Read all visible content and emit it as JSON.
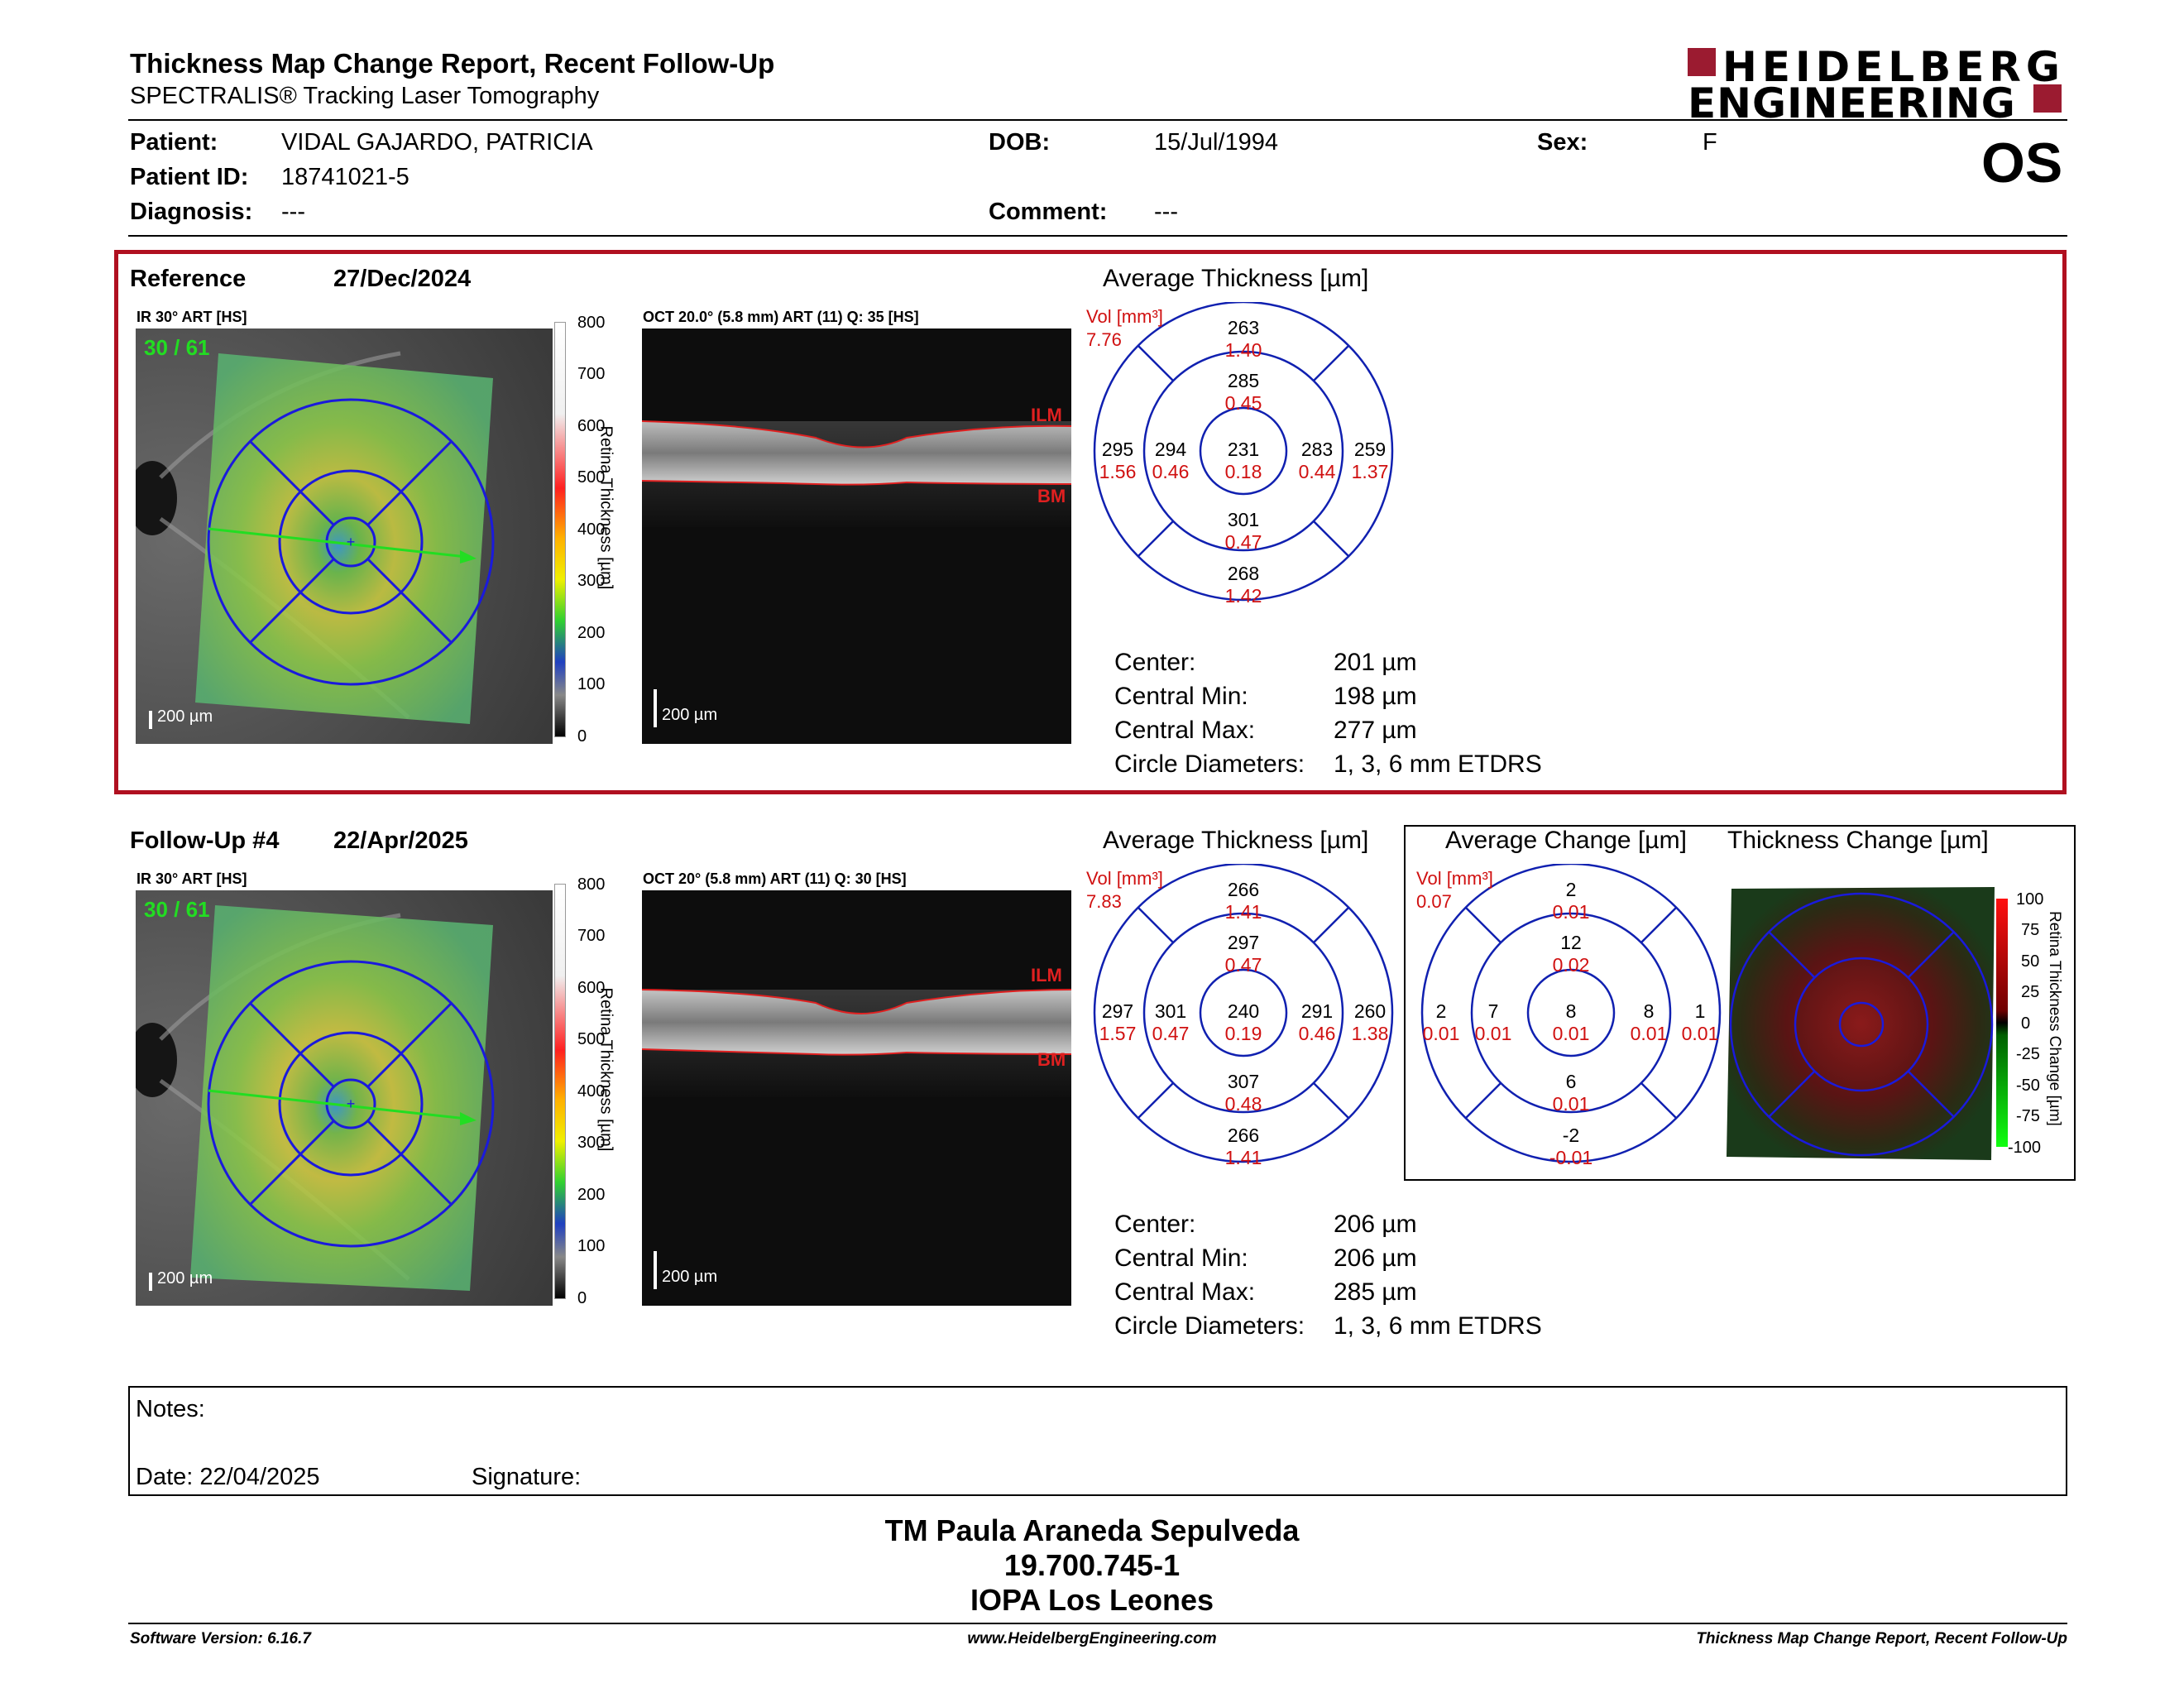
{
  "header": {
    "title": "Thickness Map Change Report, Recent Follow-Up",
    "subtitle": "SPECTRALIS® Tracking Laser Tomography",
    "logo_line1": "HEIDELBERG",
    "logo_line2": "ENGINEERING",
    "eye": "OS"
  },
  "patient": {
    "patient_label": "Patient:",
    "patient_value": "VIDAL GAJARDO, PATRICIA",
    "id_label": "Patient ID:",
    "id_value": "18741021-5",
    "diag_label": "Diagnosis:",
    "diag_value": "---",
    "dob_label": "DOB:",
    "dob_value": "15/Jul/1994",
    "comment_label": "Comment:",
    "comment_value": "---",
    "sex_label": "Sex:",
    "sex_value": "F"
  },
  "reference": {
    "label": "Reference",
    "date": "27/Dec/2024",
    "ir_caption": "IR 30° ART [HS]",
    "ir_counter": "30 / 61",
    "oct_caption": "OCT 20.0° (5.8 mm) ART (11) Q: 35 [HS]",
    "scale_label": "200 µm",
    "ilm": "ILM",
    "bm": "BM",
    "avg_title": "Average Thickness [µm]",
    "vol_label": "Vol [mm³]",
    "vol_total": "7.76",
    "etdrs": {
      "center": [
        "231",
        "0.18"
      ],
      "inner_sup": [
        "285",
        "0.45"
      ],
      "inner_inf": [
        "301",
        "0.47"
      ],
      "inner_temp": [
        "294",
        "0.46"
      ],
      "inner_nas": [
        "283",
        "0.44"
      ],
      "outer_sup": [
        "263",
        "1.40"
      ],
      "outer_inf": [
        "268",
        "1.42"
      ],
      "outer_temp": [
        "295",
        "1.56"
      ],
      "outer_nas": [
        "259",
        "1.37"
      ]
    },
    "stats": [
      {
        "label": "Center:",
        "value": "201 µm"
      },
      {
        "label": "Central Min:",
        "value": "198 µm"
      },
      {
        "label": "Central Max:",
        "value": "277 µm"
      },
      {
        "label": "Circle Diameters:",
        "value": "1, 3, 6 mm ETDRS"
      }
    ]
  },
  "followup": {
    "label": "Follow-Up #4",
    "date": "22/Apr/2025",
    "ir_caption": "IR 30° ART [HS]",
    "ir_counter": "30 / 61",
    "oct_caption": "OCT 20° (5.8 mm) ART (11) Q: 30 [HS]",
    "scale_label": "200 µm",
    "ilm": "ILM",
    "bm": "BM",
    "avg_title": "Average Thickness [µm]",
    "vol_label": "Vol [mm³]",
    "vol_total": "7.83",
    "etdrs": {
      "center": [
        "240",
        "0.19"
      ],
      "inner_sup": [
        "297",
        "0.47"
      ],
      "inner_inf": [
        "307",
        "0.48"
      ],
      "inner_temp": [
        "301",
        "0.47"
      ],
      "inner_nas": [
        "291",
        "0.46"
      ],
      "outer_sup": [
        "266",
        "1.41"
      ],
      "outer_inf": [
        "266",
        "1.41"
      ],
      "outer_temp": [
        "297",
        "1.57"
      ],
      "outer_nas": [
        "260",
        "1.38"
      ]
    },
    "stats": [
      {
        "label": "Center:",
        "value": "206 µm"
      },
      {
        "label": "Central Min:",
        "value": "206 µm"
      },
      {
        "label": "Central Max:",
        "value": "285 µm"
      },
      {
        "label": "Circle Diameters:",
        "value": "1, 3, 6 mm ETDRS"
      }
    ]
  },
  "change": {
    "avg_title": "Average Change [µm]",
    "map_title": "Thickness Change [µm]",
    "vol_label": "Vol [mm³]",
    "vol_total": "0.07",
    "etdrs": {
      "center": [
        "8",
        "0.01"
      ],
      "inner_sup": [
        "12",
        "0.02"
      ],
      "inner_inf": [
        "6",
        "0.01"
      ],
      "inner_temp": [
        "7",
        "0.01"
      ],
      "inner_nas": [
        "8",
        "0.01"
      ],
      "outer_sup": [
        "2",
        "0.01"
      ],
      "outer_inf": [
        "-2",
        "-0.01"
      ],
      "outer_temp": [
        "2",
        "0.01"
      ],
      "outer_nas": [
        "1",
        "0.01"
      ]
    },
    "colorbar_ticks": [
      "100",
      "75",
      "50",
      "25",
      "0",
      "-25",
      "-50",
      "-75",
      "-100"
    ],
    "colorbar_title": "Retina Thickness Change [µm]"
  },
  "colorbar": {
    "ticks": [
      "800",
      "700",
      "600",
      "500",
      "400",
      "300",
      "200",
      "100",
      "0"
    ],
    "title": "Retina Thickness [µm]"
  },
  "notes": {
    "notes_label": "Notes:",
    "date_label": "Date: 22/04/2025",
    "signature_label": "Signature:"
  },
  "signature_block": {
    "name": "TM Paula Araneda Sepulveda",
    "rut": "19.700.745-1",
    "clinic": "IOPA Los Leones"
  },
  "footer": {
    "version": "Software Version: 6.16.7",
    "url": "www.HeidelbergEngineering.com",
    "report": "Thickness Map Change Report, Recent Follow-Up"
  },
  "colors": {
    "brand_red": "#9b1b30",
    "etdrs_blue": "#1020b0",
    "vol_red": "#d01010",
    "panel_border": "#b01020"
  }
}
